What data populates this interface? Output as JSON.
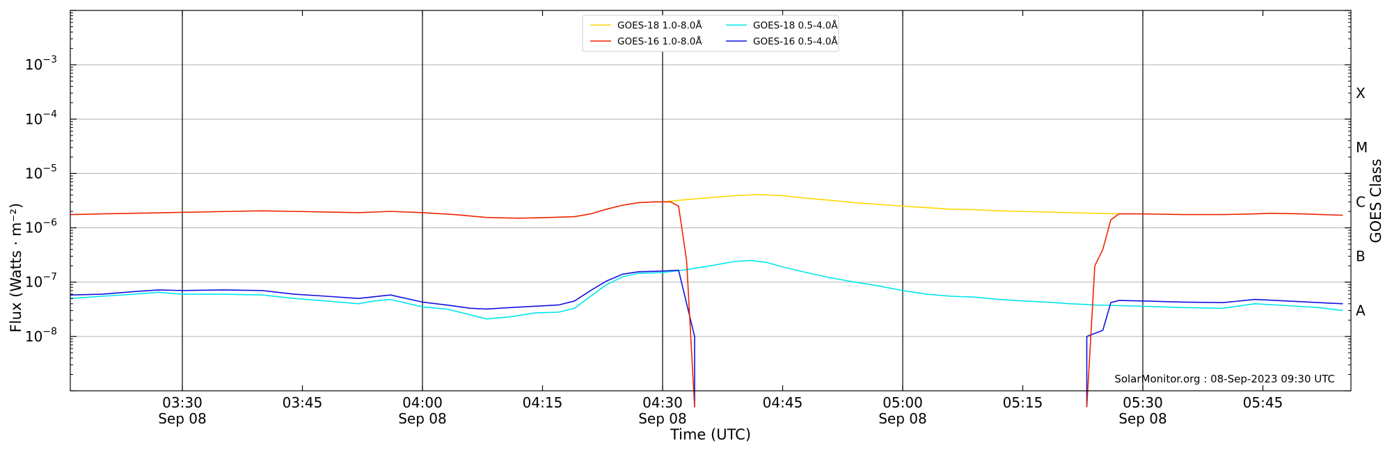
{
  "chart_data": {
    "type": "line",
    "xlabel": "Time (UTC)",
    "ylabel": "Flux (Watts · m⁻²)",
    "right_label": "GOES Class",
    "credit": "SolarMonitor.org : 08-Sep-2023 09:30 UTC",
    "ylim": [
      1e-09,
      0.01
    ],
    "yscale": "log",
    "xlim": [
      "03:16",
      "05:56"
    ],
    "grid": "horizontal at decades; vertical lines at :00 and :30",
    "legend_position": "top-center",
    "y_ticks": [
      {
        "value": 1e-08,
        "base": "10",
        "exp": "−8"
      },
      {
        "value": 1e-07,
        "base": "10",
        "exp": "−7"
      },
      {
        "value": 1e-06,
        "base": "10",
        "exp": "−6"
      },
      {
        "value": 1e-05,
        "base": "10",
        "exp": "−5"
      },
      {
        "value": 0.0001,
        "base": "10",
        "exp": "−4"
      },
      {
        "value": 0.001,
        "base": "10",
        "exp": "−3"
      }
    ],
    "x_ticks": [
      {
        "time": "03:30",
        "date": "Sep 08"
      },
      {
        "time": "03:45",
        "date": ""
      },
      {
        "time": "04:00",
        "date": "Sep 08"
      },
      {
        "time": "04:15",
        "date": ""
      },
      {
        "time": "04:30",
        "date": "Sep 08"
      },
      {
        "time": "04:45",
        "date": ""
      },
      {
        "time": "05:00",
        "date": "Sep 08"
      },
      {
        "time": "05:15",
        "date": ""
      },
      {
        "time": "05:30",
        "date": "Sep 08"
      },
      {
        "time": "05:45",
        "date": ""
      }
    ],
    "vertical_lines": [
      "03:30",
      "04:00",
      "04:30",
      "05:00",
      "05:30"
    ],
    "goes_classes": [
      {
        "label": "A",
        "value": 3e-08
      },
      {
        "label": "B",
        "value": 3e-07
      },
      {
        "label": "C",
        "value": 3e-06
      },
      {
        "label": "M",
        "value": 3e-05
      },
      {
        "label": "X",
        "value": 0.0003
      }
    ],
    "series": [
      {
        "name": "GOES-18 1.0-8.0Å",
        "color": "#FFD700",
        "points": [
          [
            "04:30",
            3e-06
          ],
          [
            "04:33",
            3.3e-06
          ],
          [
            "04:36",
            3.6e-06
          ],
          [
            "04:39",
            3.9e-06
          ],
          [
            "04:42",
            4.1e-06
          ],
          [
            "04:45",
            3.9e-06
          ],
          [
            "04:48",
            3.5e-06
          ],
          [
            "04:51",
            3.2e-06
          ],
          [
            "04:54",
            2.9e-06
          ],
          [
            "04:57",
            2.7e-06
          ],
          [
            "05:00",
            2.5e-06
          ],
          [
            "05:03",
            2.35e-06
          ],
          [
            "05:06",
            2.2e-06
          ],
          [
            "05:09",
            2.15e-06
          ],
          [
            "05:12",
            2.05e-06
          ],
          [
            "05:15",
            2e-06
          ],
          [
            "05:18",
            1.95e-06
          ],
          [
            "05:21",
            1.9e-06
          ],
          [
            "05:24",
            1.85e-06
          ],
          [
            "05:27",
            1.8e-06
          ]
        ]
      },
      {
        "name": "GOES-16 1.0-8.0Å",
        "color": "#EE2200",
        "points": [
          [
            "03:16",
            1.75e-06
          ],
          [
            "03:20",
            1.8e-06
          ],
          [
            "03:24",
            1.85e-06
          ],
          [
            "03:28",
            1.9e-06
          ],
          [
            "03:32",
            1.95e-06
          ],
          [
            "03:36",
            2e-06
          ],
          [
            "03:40",
            2.05e-06
          ],
          [
            "03:44",
            2e-06
          ],
          [
            "03:48",
            1.95e-06
          ],
          [
            "03:52",
            1.9e-06
          ],
          [
            "03:56",
            2e-06
          ],
          [
            "04:00",
            1.9e-06
          ],
          [
            "04:04",
            1.75e-06
          ],
          [
            "04:08",
            1.55e-06
          ],
          [
            "04:12",
            1.5e-06
          ],
          [
            "04:16",
            1.55e-06
          ],
          [
            "04:19",
            1.6e-06
          ],
          [
            "04:21",
            1.8e-06
          ],
          [
            "04:23",
            2.2e-06
          ],
          [
            "04:25",
            2.6e-06
          ],
          [
            "04:27",
            2.9e-06
          ],
          [
            "04:29",
            3e-06
          ],
          [
            "04:31",
            3e-06
          ],
          [
            "04:32",
            2.5e-06
          ],
          [
            "04:33",
            2.5e-07
          ],
          [
            "04:34",
            5e-10
          ],
          [
            null,
            null
          ],
          [
            "05:23",
            5e-10
          ],
          [
            "05:24",
            2e-07
          ],
          [
            "05:25",
            4e-07
          ],
          [
            "05:26",
            1.4e-06
          ],
          [
            "05:27",
            1.8e-06
          ],
          [
            "05:30",
            1.8e-06
          ],
          [
            "05:35",
            1.75e-06
          ],
          [
            "05:40",
            1.75e-06
          ],
          [
            "05:44",
            1.8e-06
          ],
          [
            "05:46",
            1.85e-06
          ],
          [
            "05:50",
            1.8e-06
          ],
          [
            "05:55",
            1.7e-06
          ]
        ]
      },
      {
        "name": "GOES-18 0.5-4.0Å",
        "color": "#00E5EE",
        "points": [
          [
            "03:16",
            5e-08
          ],
          [
            "03:20",
            5.5e-08
          ],
          [
            "03:24",
            6e-08
          ],
          [
            "03:27",
            6.5e-08
          ],
          [
            "03:30",
            6e-08
          ],
          [
            "03:35",
            6e-08
          ],
          [
            "03:40",
            5.8e-08
          ],
          [
            "03:44",
            5e-08
          ],
          [
            "03:48",
            4.5e-08
          ],
          [
            "03:52",
            4e-08
          ],
          [
            "03:54",
            4.5e-08
          ],
          [
            "03:56",
            4.8e-08
          ],
          [
            "04:00",
            3.5e-08
          ],
          [
            "04:03",
            3.2e-08
          ],
          [
            "04:06",
            2.5e-08
          ],
          [
            "04:08",
            2.1e-08
          ],
          [
            "04:11",
            2.3e-08
          ],
          [
            "04:14",
            2.7e-08
          ],
          [
            "04:17",
            2.8e-08
          ],
          [
            "04:19",
            3.3e-08
          ],
          [
            "04:21",
            5.5e-08
          ],
          [
            "04:23",
            9e-08
          ],
          [
            "04:25",
            1.25e-07
          ],
          [
            "04:27",
            1.45e-07
          ],
          [
            "04:30",
            1.5e-07
          ],
          [
            "04:33",
            1.7e-07
          ],
          [
            "04:36",
            2e-07
          ],
          [
            "04:39",
            2.4e-07
          ],
          [
            "04:41",
            2.5e-07
          ],
          [
            "04:43",
            2.3e-07
          ],
          [
            "04:45",
            1.9e-07
          ],
          [
            "04:48",
            1.5e-07
          ],
          [
            "04:51",
            1.2e-07
          ],
          [
            "04:54",
            1e-07
          ],
          [
            "04:57",
            8.5e-08
          ],
          [
            "05:00",
            7e-08
          ],
          [
            "05:03",
            6e-08
          ],
          [
            "05:06",
            5.5e-08
          ],
          [
            "05:09",
            5.3e-08
          ],
          [
            "05:12",
            4.8e-08
          ],
          [
            "05:15",
            4.5e-08
          ],
          [
            "05:18",
            4.3e-08
          ],
          [
            "05:21",
            4e-08
          ],
          [
            "05:24",
            3.8e-08
          ],
          [
            "05:27",
            3.7e-08
          ],
          [
            "05:30",
            3.6e-08
          ],
          [
            "05:35",
            3.4e-08
          ],
          [
            "05:40",
            3.3e-08
          ],
          [
            "05:44",
            4e-08
          ],
          [
            "05:48",
            3.7e-08
          ],
          [
            "05:52",
            3.4e-08
          ],
          [
            "05:55",
            3e-08
          ]
        ]
      },
      {
        "name": "GOES-16 0.5-4.0Å",
        "color": "#1010E0",
        "points": [
          [
            "03:16",
            5.8e-08
          ],
          [
            "03:20",
            6e-08
          ],
          [
            "03:24",
            6.7e-08
          ],
          [
            "03:27",
            7.2e-08
          ],
          [
            "03:30",
            7e-08
          ],
          [
            "03:35",
            7.2e-08
          ],
          [
            "03:40",
            7e-08
          ],
          [
            "03:44",
            6e-08
          ],
          [
            "03:48",
            5.5e-08
          ],
          [
            "03:52",
            5e-08
          ],
          [
            "03:56",
            5.8e-08
          ],
          [
            "04:00",
            4.3e-08
          ],
          [
            "04:03",
            3.8e-08
          ],
          [
            "04:06",
            3.3e-08
          ],
          [
            "04:08",
            3.2e-08
          ],
          [
            "04:11",
            3.4e-08
          ],
          [
            "04:14",
            3.6e-08
          ],
          [
            "04:17",
            3.8e-08
          ],
          [
            "04:19",
            4.5e-08
          ],
          [
            "04:21",
            7e-08
          ],
          [
            "04:23",
            1.05e-07
          ],
          [
            "04:25",
            1.4e-07
          ],
          [
            "04:27",
            1.55e-07
          ],
          [
            "04:30",
            1.6e-07
          ],
          [
            "04:32",
            1.65e-07
          ],
          [
            "04:34",
            1e-08
          ],
          [
            "04:34",
            5e-10
          ],
          [
            null,
            null
          ],
          [
            "05:23",
            5e-10
          ],
          [
            "05:23",
            1e-08
          ],
          [
            "05:25",
            1.3e-08
          ],
          [
            "05:26",
            4.2e-08
          ],
          [
            "05:27",
            4.6e-08
          ],
          [
            "05:30",
            4.5e-08
          ],
          [
            "05:35",
            4.3e-08
          ],
          [
            "05:40",
            4.2e-08
          ],
          [
            "05:44",
            4.8e-08
          ],
          [
            "05:48",
            4.5e-08
          ],
          [
            "05:52",
            4.2e-08
          ],
          [
            "05:55",
            4e-08
          ]
        ]
      }
    ],
    "legend_order": [
      0,
      2,
      1,
      3
    ]
  }
}
